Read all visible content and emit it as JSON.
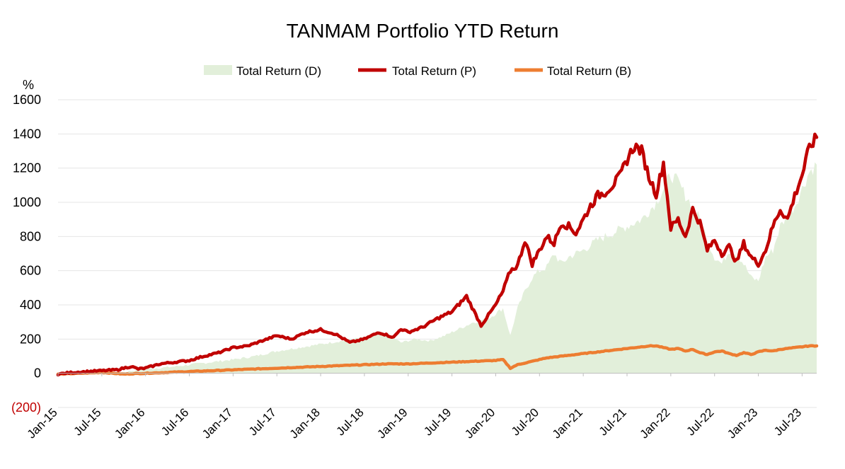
{
  "chart_data": {
    "type": "line",
    "title": "TANMAM Portfolio YTD Return",
    "ylabel": "%",
    "ylim": [
      -200,
      1600
    ],
    "yticks": [
      -200,
      0,
      200,
      400,
      600,
      800,
      1000,
      1200,
      1400,
      1600
    ],
    "ytick_labels": [
      "(200)",
      "0",
      "200",
      "400",
      "600",
      "800",
      "1000",
      "1200",
      "1400",
      "1600"
    ],
    "x_tick_labels": [
      "Jan-15",
      "Jul-15",
      "Jan-16",
      "Jul-16",
      "Jan-17",
      "Jul-17",
      "Jan-18",
      "Jul-18",
      "Jan-19",
      "Jul-19",
      "Jan-20",
      "Jul-20",
      "Jan-21",
      "Jul-21",
      "Jan-22",
      "Jul-22",
      "Jan-23",
      "Jul-23"
    ],
    "x_range_months": [
      0,
      104
    ],
    "legend_position": "top-center",
    "series": [
      {
        "name": "Total Return (D)",
        "kind": "area",
        "color": "#e2efda",
        "x_months": [
          0,
          3,
          6,
          9,
          12,
          15,
          18,
          21,
          24,
          27,
          30,
          33,
          36,
          39,
          42,
          45,
          47,
          49,
          51,
          53,
          55,
          57,
          59,
          61,
          62,
          63,
          64,
          65,
          66,
          67,
          68,
          69,
          70,
          72,
          74,
          76,
          78,
          80,
          82,
          83,
          84,
          85,
          86,
          87,
          88,
          89,
          90,
          91,
          92,
          93,
          94,
          95,
          96,
          97,
          98,
          99,
          100,
          101,
          102,
          103,
          104
        ],
        "values": [
          0,
          5,
          10,
          8,
          25,
          35,
          50,
          65,
          80,
          100,
          130,
          150,
          170,
          190,
          210,
          230,
          180,
          200,
          190,
          220,
          260,
          300,
          320,
          380,
          220,
          380,
          480,
          560,
          600,
          620,
          700,
          640,
          680,
          720,
          780,
          820,
          860,
          900,
          1000,
          1080,
          1160,
          1120,
          1040,
          980,
          900,
          780,
          680,
          640,
          720,
          700,
          640,
          560,
          540,
          680,
          720,
          860,
          920,
          980,
          1080,
          1180,
          1220
        ]
      },
      {
        "name": "Total Return (P)",
        "kind": "line",
        "color": "#c00000",
        "x_months": [
          0,
          2,
          4,
          6,
          8,
          10,
          11,
          12,
          14,
          16,
          18,
          20,
          22,
          24,
          26,
          28,
          30,
          32,
          34,
          36,
          38,
          40,
          42,
          44,
          46,
          47,
          48,
          50,
          52,
          54,
          56,
          58,
          60,
          61,
          62,
          63,
          64,
          65,
          66,
          67,
          68,
          69,
          70,
          71,
          72,
          73,
          74,
          75,
          76,
          77,
          78,
          79,
          80,
          81,
          82,
          83,
          84,
          85,
          86,
          87,
          88,
          89,
          90,
          91,
          92,
          93,
          94,
          95,
          96,
          97,
          98,
          99,
          100,
          101,
          102,
          103,
          104
        ],
        "values": [
          -5,
          5,
          10,
          15,
          20,
          40,
          25,
          30,
          55,
          65,
          75,
          100,
          120,
          150,
          160,
          190,
          220,
          200,
          240,
          255,
          230,
          180,
          200,
          240,
          210,
          260,
          240,
          270,
          320,
          360,
          450,
          280,
          400,
          480,
          600,
          630,
          780,
          640,
          720,
          800,
          760,
          880,
          860,
          820,
          900,
          980,
          1040,
          1060,
          1100,
          1150,
          1250,
          1330,
          1300,
          1150,
          1050,
          1230,
          850,
          900,
          800,
          960,
          880,
          720,
          780,
          700,
          740,
          650,
          760,
          680,
          640,
          720,
          860,
          960,
          900,
          1040,
          1160,
          1320,
          1380
        ]
      },
      {
        "name": "Total Return (B)",
        "kind": "line",
        "color": "#ed7d31",
        "x_months": [
          0,
          3,
          6,
          9,
          12,
          15,
          18,
          21,
          24,
          27,
          30,
          33,
          36,
          39,
          42,
          45,
          48,
          51,
          54,
          57,
          60,
          61,
          62,
          63,
          64,
          65,
          66,
          67,
          68,
          69,
          70,
          71,
          72,
          73,
          74,
          75,
          76,
          77,
          78,
          79,
          80,
          81,
          82,
          83,
          84,
          85,
          86,
          87,
          88,
          89,
          90,
          91,
          92,
          93,
          94,
          95,
          96,
          97,
          98,
          99,
          100,
          101,
          102,
          103,
          104
        ],
        "values": [
          -5,
          0,
          5,
          -5,
          0,
          5,
          10,
          15,
          20,
          25,
          30,
          35,
          40,
          45,
          50,
          55,
          55,
          60,
          65,
          70,
          75,
          80,
          30,
          50,
          60,
          70,
          80,
          90,
          95,
          100,
          105,
          110,
          115,
          120,
          125,
          130,
          135,
          140,
          145,
          150,
          155,
          160,
          160,
          150,
          140,
          145,
          130,
          140,
          120,
          110,
          125,
          130,
          115,
          105,
          120,
          110,
          125,
          135,
          130,
          140,
          145,
          150,
          155,
          160,
          160
        ]
      }
    ]
  }
}
